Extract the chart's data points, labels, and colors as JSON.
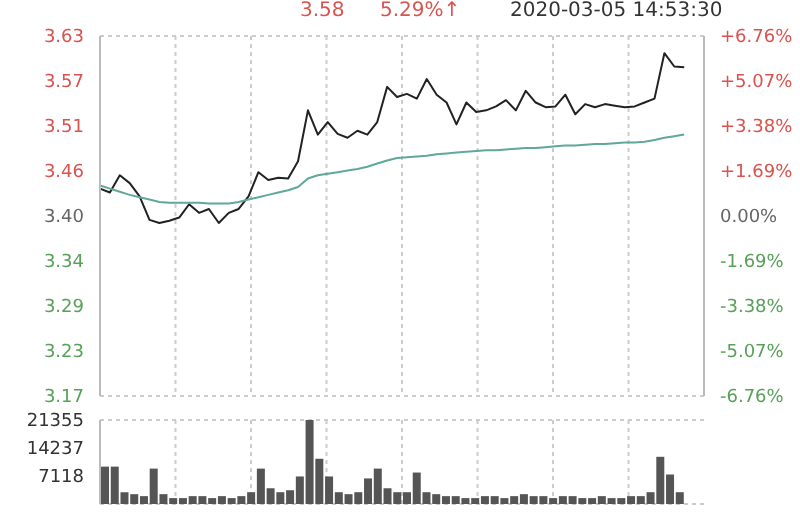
{
  "chart_data": [
    {
      "type": "line",
      "subtitle": "2020-03-05 14:53:30",
      "annotations": [
        "3.58",
        "5.29%↑"
      ],
      "categories": [
        null,
        null,
        null,
        null,
        null,
        null,
        null,
        null,
        null,
        null,
        null,
        null,
        null,
        null,
        null,
        null,
        null,
        null,
        null,
        null,
        null,
        null,
        null,
        null,
        null,
        null,
        null,
        null,
        null,
        null,
        null,
        null,
        null,
        null,
        null,
        null,
        null,
        null,
        null,
        null,
        null,
        null,
        null,
        null,
        null,
        null,
        null,
        null,
        null,
        null,
        null,
        null,
        null,
        null,
        null,
        null,
        null,
        null,
        null,
        null,
        null,
        null
      ],
      "series": [
        {
          "color": "#222222",
          "values": [
            3.435,
            3.43,
            3.452,
            3.442,
            3.425,
            3.395,
            3.391,
            3.394,
            3.398,
            3.415,
            3.404,
            3.409,
            3.391,
            3.404,
            3.409,
            3.425,
            3.456,
            3.446,
            3.449,
            3.448,
            3.47,
            3.535,
            3.504,
            3.52,
            3.505,
            3.5,
            3.509,
            3.504,
            3.52,
            3.565,
            3.552,
            3.556,
            3.55,
            3.575,
            3.555,
            3.545,
            3.517,
            3.545,
            3.533,
            3.535,
            3.54,
            3.548,
            3.535,
            3.56,
            3.545,
            3.539,
            3.54,
            3.555,
            3.53,
            3.543,
            3.539,
            3.543,
            3.541,
            3.539,
            3.54,
            3.545,
            3.55,
            3.608,
            3.591,
            3.59,
            null,
            null
          ]
        },
        {
          "color": "#5fa89a",
          "values": [
            3.439,
            3.435,
            3.431,
            3.427,
            3.424,
            3.421,
            3.418,
            3.417,
            3.417,
            3.417,
            3.417,
            3.416,
            3.416,
            3.416,
            3.418,
            3.421,
            3.424,
            3.427,
            3.43,
            3.433,
            3.437,
            3.448,
            3.452,
            3.454,
            3.456,
            3.458,
            3.46,
            3.463,
            3.467,
            3.471,
            3.474,
            3.475,
            3.476,
            3.477,
            3.479,
            3.48,
            3.481,
            3.482,
            3.483,
            3.484,
            3.484,
            3.485,
            3.486,
            3.487,
            3.487,
            3.488,
            3.489,
            3.49,
            3.49,
            3.491,
            3.492,
            3.492,
            3.493,
            3.494,
            3.494,
            3.495,
            3.497,
            3.5,
            3.502,
            3.504,
            null,
            null
          ]
        }
      ],
      "ylim": [
        3.17,
        3.63
      ],
      "yticks": [
        {
          "value": 3.17,
          "label": "3.17"
        },
        {
          "value": 3.2275,
          "label": "3.23"
        },
        {
          "value": 3.285,
          "label": "3.29"
        },
        {
          "value": 3.3425,
          "label": "3.34"
        },
        {
          "value": 3.4,
          "label": "3.40"
        },
        {
          "value": 3.4575,
          "label": "3.46"
        },
        {
          "value": 3.515,
          "label": "3.51"
        },
        {
          "value": 3.5725,
          "label": "3.57"
        },
        {
          "value": 3.63,
          "label": "3.63"
        }
      ],
      "y2lim": [
        -6.76,
        6.76
      ],
      "y2ticks": [
        {
          "value": -6.76,
          "label": "-6.76%"
        },
        {
          "value": -5.07,
          "label": "-5.07%"
        },
        {
          "value": -3.38,
          "label": "-3.38%"
        },
        {
          "value": -1.69,
          "label": "-1.69%"
        },
        {
          "value": 0,
          "label": "0.00%"
        },
        {
          "value": 1.69,
          "label": "+1.69%"
        },
        {
          "value": 3.38,
          "label": "+3.38%"
        },
        {
          "value": 5.07,
          "label": "+5.07%"
        },
        {
          "value": 6.76,
          "label": "+6.76%"
        }
      ],
      "grid": true,
      "tick_labels": "y"
    },
    {
      "type": "bar",
      "categories": [
        null,
        null,
        null,
        null,
        null,
        null,
        null,
        null,
        null,
        null,
        null,
        null,
        null,
        null,
        null,
        null,
        null,
        null,
        null,
        null,
        null,
        null,
        null,
        null,
        null,
        null,
        null,
        null,
        null,
        null,
        null,
        null,
        null,
        null,
        null,
        null,
        null,
        null,
        null,
        null,
        null,
        null,
        null,
        null,
        null,
        null,
        null,
        null,
        null,
        null,
        null,
        null,
        null,
        null,
        null,
        null,
        null,
        null,
        null,
        null,
        null,
        null
      ],
      "series": [
        {
          "color": "#555555",
          "values": [
            9500,
            9500,
            3000,
            2500,
            2000,
            9000,
            2500,
            1500,
            1500,
            2000,
            2000,
            1500,
            2000,
            1500,
            2000,
            3000,
            9000,
            4000,
            3000,
            3500,
            7000,
            21355,
            11500,
            7000,
            3000,
            2500,
            3000,
            6500,
            9000,
            4000,
            3000,
            3000,
            8000,
            3000,
            2500,
            2000,
            2000,
            1500,
            1500,
            2000,
            2000,
            1500,
            2000,
            2500,
            2000,
            2000,
            1500,
            2000,
            2000,
            1500,
            1500,
            2000,
            1500,
            1500,
            2000,
            2000,
            3000,
            12000,
            7500,
            3000,
            null,
            null
          ]
        }
      ],
      "ylim": [
        0,
        21355
      ],
      "yticks": [
        7118,
        14237,
        21355
      ],
      "grid": true,
      "tick_labels": "y"
    }
  ]
}
